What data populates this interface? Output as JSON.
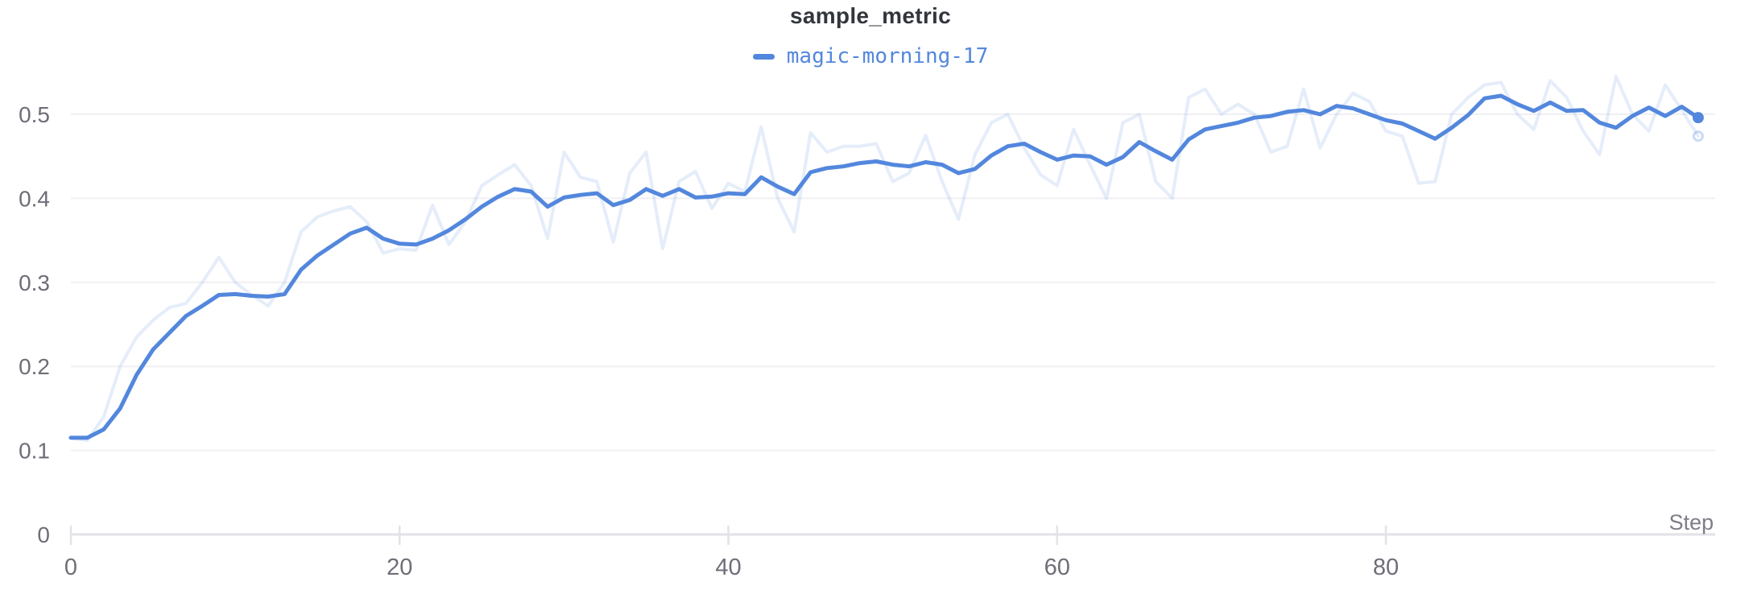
{
  "chart": {
    "title": "sample_metric",
    "legend": [
      {
        "label": "magic-morning-17",
        "color": "#5387DD"
      }
    ]
  },
  "axes": {
    "x": {
      "label": "Step",
      "ticks": [
        0,
        20,
        40,
        60,
        80
      ],
      "min": 0,
      "max": 100
    },
    "y": {
      "ticks": [
        0,
        0.1,
        0.2,
        0.3,
        0.4,
        0.5
      ],
      "tick_labels": [
        "0",
        "0.1",
        "0.2",
        "0.3",
        "0.4",
        "0.5"
      ],
      "min": 0,
      "max": 0.56
    }
  },
  "colors": {
    "accent": "#5387DD",
    "raw_line_opacity": 0.15,
    "title_text": "#33353d",
    "tick_text": "#6e6e79",
    "axis_label_text": "#7d7d87",
    "gridline": "#f0f0f4",
    "axis_line": "#e2e2e8",
    "background": "#ffffff"
  },
  "chart_data": {
    "type": "line",
    "title": "sample_metric",
    "xlabel": "Step",
    "ylabel": "",
    "x_range": [
      0,
      100
    ],
    "y_range": [
      0,
      0.56
    ],
    "grid": "horizontal-only",
    "legend_position": "top-center",
    "x_start": 0,
    "x_step": 1,
    "n_points": 100,
    "series": [
      {
        "name": "magic-morning-17 (raw, unsmoothed)",
        "role": "raw",
        "color": "#5387DD",
        "opacity": 0.15,
        "end_marker": "ring",
        "values": [
          0.115,
          0.112,
          0.14,
          0.2,
          0.235,
          0.255,
          0.27,
          0.275,
          0.3,
          0.33,
          0.3,
          0.285,
          0.272,
          0.3,
          0.36,
          0.378,
          0.385,
          0.39,
          0.372,
          0.335,
          0.34,
          0.338,
          0.392,
          0.345,
          0.372,
          0.415,
          0.428,
          0.44,
          0.415,
          0.352,
          0.455,
          0.425,
          0.42,
          0.348,
          0.43,
          0.455,
          0.34,
          0.42,
          0.432,
          0.388,
          0.418,
          0.408,
          0.485,
          0.4,
          0.36,
          0.478,
          0.455,
          0.462,
          0.462,
          0.465,
          0.42,
          0.43,
          0.475,
          0.42,
          0.375,
          0.452,
          0.49,
          0.5,
          0.46,
          0.428,
          0.415,
          0.482,
          0.44,
          0.4,
          0.49,
          0.5,
          0.42,
          0.4,
          0.52,
          0.53,
          0.5,
          0.512,
          0.5,
          0.455,
          0.462,
          0.53,
          0.46,
          0.5,
          0.525,
          0.515,
          0.48,
          0.474,
          0.418,
          0.42,
          0.5,
          0.52,
          0.535,
          0.538,
          0.5,
          0.482,
          0.54,
          0.52,
          0.48,
          0.452,
          0.545,
          0.5,
          0.48,
          0.535,
          0.505,
          0.474
        ]
      },
      {
        "name": "magic-morning-17",
        "role": "smoothed",
        "color": "#5387DD",
        "opacity": 1,
        "end_marker": "dot",
        "values": [
          0.115,
          0.115,
          0.125,
          0.15,
          0.19,
          0.22,
          0.24,
          0.26,
          0.272,
          0.285,
          0.286,
          0.284,
          0.283,
          0.286,
          0.315,
          0.332,
          0.345,
          0.358,
          0.365,
          0.352,
          0.346,
          0.345,
          0.352,
          0.362,
          0.375,
          0.39,
          0.402,
          0.411,
          0.408,
          0.39,
          0.401,
          0.404,
          0.406,
          0.392,
          0.398,
          0.411,
          0.403,
          0.411,
          0.401,
          0.402,
          0.406,
          0.405,
          0.425,
          0.414,
          0.405,
          0.431,
          0.436,
          0.438,
          0.442,
          0.444,
          0.44,
          0.438,
          0.443,
          0.44,
          0.43,
          0.435,
          0.451,
          0.462,
          0.465,
          0.455,
          0.446,
          0.451,
          0.45,
          0.44,
          0.449,
          0.467,
          0.456,
          0.446,
          0.47,
          0.482,
          0.486,
          0.49,
          0.496,
          0.498,
          0.503,
          0.505,
          0.5,
          0.51,
          0.507,
          0.5,
          0.493,
          0.489,
          0.48,
          0.471,
          0.484,
          0.499,
          0.519,
          0.522,
          0.512,
          0.504,
          0.514,
          0.504,
          0.505,
          0.49,
          0.484,
          0.498,
          0.508,
          0.498,
          0.509,
          0.496
        ]
      }
    ]
  }
}
